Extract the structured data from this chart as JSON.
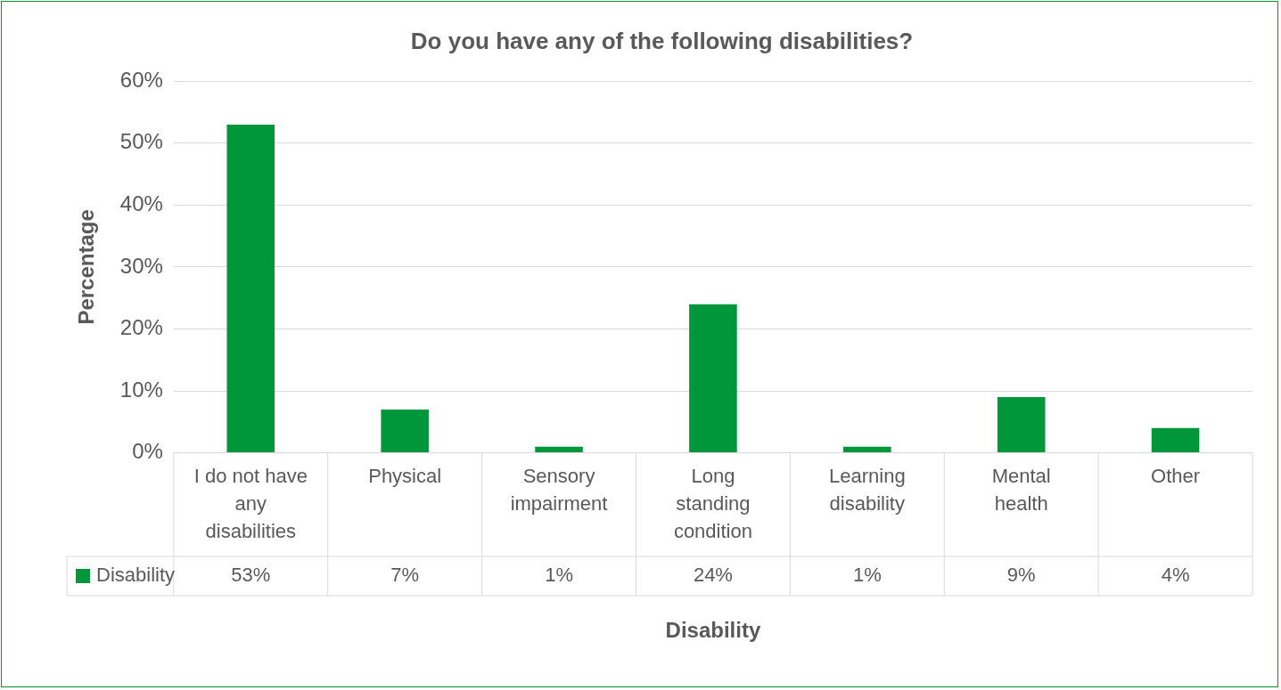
{
  "chart_data": {
    "type": "bar",
    "title": "Do you have any of the following disabilities?",
    "xlabel": "Disability",
    "ylabel": "Percentage",
    "categories": [
      "I do not have any disabilities",
      "Physical",
      "Sensory impairment",
      "Long standing condition",
      "Learning disability",
      "Mental health",
      "Other"
    ],
    "series": [
      {
        "name": "Disability",
        "color": "#00963a",
        "values": [
          53,
          7,
          1,
          24,
          1,
          9,
          4
        ],
        "value_labels": [
          "53%",
          "7%",
          "1%",
          "24%",
          "1%",
          "9%",
          "4%"
        ]
      }
    ],
    "ylim": [
      0,
      60
    ],
    "yticks": [
      {
        "value": 0,
        "label": "0%"
      },
      {
        "value": 10,
        "label": "10%"
      },
      {
        "value": 20,
        "label": "20%"
      },
      {
        "value": 30,
        "label": "30%"
      },
      {
        "value": 40,
        "label": "40%"
      },
      {
        "value": 50,
        "label": "50%"
      },
      {
        "value": 60,
        "label": "60%"
      }
    ],
    "grid": "y",
    "legend": "bottom"
  }
}
